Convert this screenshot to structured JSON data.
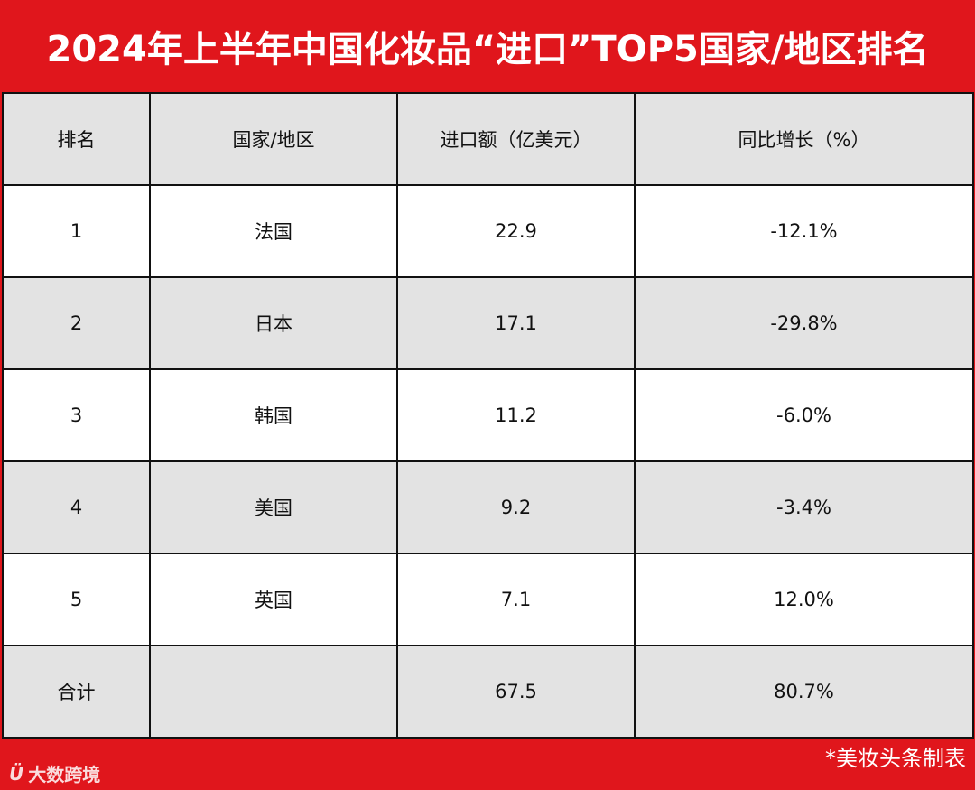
{
  "title": "2024年上半年中国化妆品“进口”TOP5国家/地区排名",
  "table": {
    "headers": [
      "排名",
      "国家/地区",
      "进口额（亿美元）",
      "同比增长（%）"
    ],
    "rows": [
      {
        "rank": "1",
        "country": "法国",
        "amount": "22.9",
        "growth": "-12.1%"
      },
      {
        "rank": "2",
        "country": "日本",
        "amount": "17.1",
        "growth": "-29.8%"
      },
      {
        "rank": "3",
        "country": "韩国",
        "amount": "11.2",
        "growth": "-6.0%"
      },
      {
        "rank": "4",
        "country": "美国",
        "amount": "9.2",
        "growth": "-3.4%"
      },
      {
        "rank": "5",
        "country": "英国",
        "amount": "7.1",
        "growth": "12.0%"
      }
    ],
    "total": {
      "label": "合计",
      "country": "",
      "amount": "67.5",
      "growth": "80.7%"
    }
  },
  "footer": {
    "logo_mark": "Ü",
    "logo_text": "大数跨境",
    "credit": "*美妆头条制表"
  },
  "colors": {
    "accent_red": "#e0161c",
    "header_gray": "#e3e3e3",
    "border": "#111111"
  }
}
